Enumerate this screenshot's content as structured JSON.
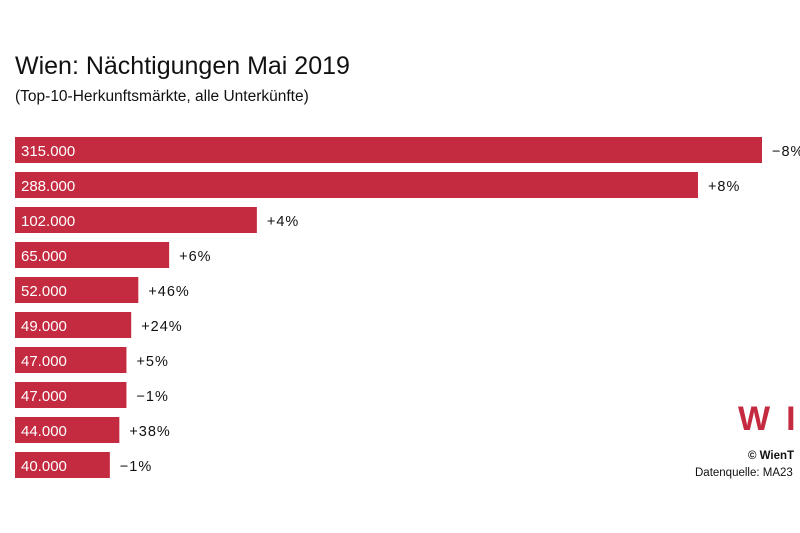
{
  "chart_data": {
    "type": "bar",
    "orientation": "horizontal",
    "title": "Wien: Nächtigungen Mai 2019",
    "subtitle": "(Top-10-Herkunftsmärkte, alle Unterkünfte)",
    "values": [
      315000,
      288000,
      102000,
      65000,
      52000,
      49000,
      47000,
      47000,
      44000,
      40000
    ],
    "value_labels": [
      "315.000",
      "288.000",
      "102.000",
      "65.000",
      "52.000",
      "49.000",
      "47.000",
      "47.000",
      "44.000",
      "40.000"
    ],
    "change_labels": [
      "−8%",
      "+8%",
      "+4%",
      "+6%",
      "+46%",
      "+24%",
      "+5%",
      "−1%",
      "+38%",
      "−1%"
    ],
    "xlim": [
      0,
      315000
    ],
    "bar_color": "#c42b40"
  },
  "footer": {
    "logo": "WI",
    "copyright": "© WienT",
    "source": "Datenquelle: MA23"
  }
}
